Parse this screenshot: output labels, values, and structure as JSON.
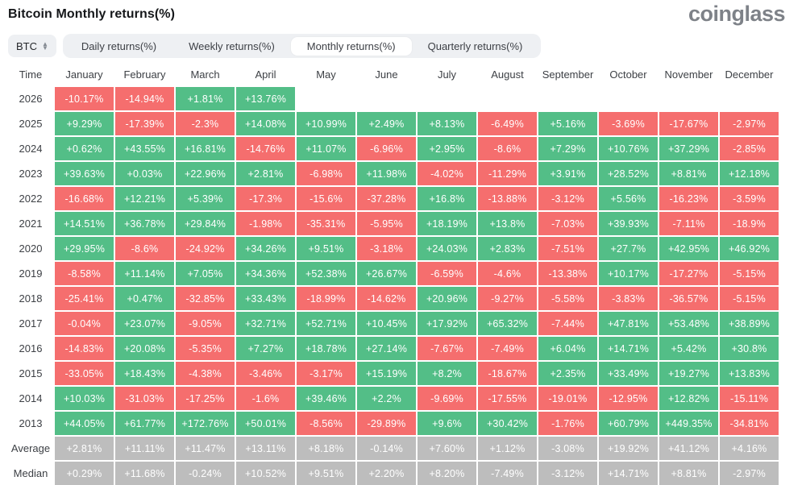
{
  "header": {
    "title": "Bitcoin Monthly returns(%)",
    "logo": "coinglass"
  },
  "toolbar": {
    "symbol_selector": {
      "value": "BTC"
    },
    "tabs": [
      {
        "label": "Daily returns(%)",
        "active": false
      },
      {
        "label": "Weekly returns(%)",
        "active": false
      },
      {
        "label": "Monthly returns(%)",
        "active": true
      },
      {
        "label": "Quarterly returns(%)",
        "active": false
      }
    ]
  },
  "colors": {
    "positive": "#53be87",
    "negative": "#f56e6e",
    "summary": "#bdbdbd",
    "cell_text": "#ffffff"
  },
  "table": {
    "columns": [
      "Time",
      "January",
      "February",
      "March",
      "April",
      "May",
      "June",
      "July",
      "August",
      "September",
      "October",
      "November",
      "December"
    ],
    "rows": [
      {
        "label": "2026",
        "summary": false,
        "values": [
          "-10.17%",
          "-14.94%",
          "+1.81%",
          "+13.76%",
          null,
          null,
          null,
          null,
          null,
          null,
          null,
          null
        ]
      },
      {
        "label": "2025",
        "summary": false,
        "values": [
          "+9.29%",
          "-17.39%",
          "-2.3%",
          "+14.08%",
          "+10.99%",
          "+2.49%",
          "+8.13%",
          "-6.49%",
          "+5.16%",
          "-3.69%",
          "-17.67%",
          "-2.97%"
        ]
      },
      {
        "label": "2024",
        "summary": false,
        "values": [
          "+0.62%",
          "+43.55%",
          "+16.81%",
          "-14.76%",
          "+11.07%",
          "-6.96%",
          "+2.95%",
          "-8.6%",
          "+7.29%",
          "+10.76%",
          "+37.29%",
          "-2.85%"
        ]
      },
      {
        "label": "2023",
        "summary": false,
        "values": [
          "+39.63%",
          "+0.03%",
          "+22.96%",
          "+2.81%",
          "-6.98%",
          "+11.98%",
          "-4.02%",
          "-11.29%",
          "+3.91%",
          "+28.52%",
          "+8.81%",
          "+12.18%"
        ]
      },
      {
        "label": "2022",
        "summary": false,
        "values": [
          "-16.68%",
          "+12.21%",
          "+5.39%",
          "-17.3%",
          "-15.6%",
          "-37.28%",
          "+16.8%",
          "-13.88%",
          "-3.12%",
          "+5.56%",
          "-16.23%",
          "-3.59%"
        ]
      },
      {
        "label": "2021",
        "summary": false,
        "values": [
          "+14.51%",
          "+36.78%",
          "+29.84%",
          "-1.98%",
          "-35.31%",
          "-5.95%",
          "+18.19%",
          "+13.8%",
          "-7.03%",
          "+39.93%",
          "-7.11%",
          "-18.9%"
        ]
      },
      {
        "label": "2020",
        "summary": false,
        "values": [
          "+29.95%",
          "-8.6%",
          "-24.92%",
          "+34.26%",
          "+9.51%",
          "-3.18%",
          "+24.03%",
          "+2.83%",
          "-7.51%",
          "+27.7%",
          "+42.95%",
          "+46.92%"
        ]
      },
      {
        "label": "2019",
        "summary": false,
        "values": [
          "-8.58%",
          "+11.14%",
          "+7.05%",
          "+34.36%",
          "+52.38%",
          "+26.67%",
          "-6.59%",
          "-4.6%",
          "-13.38%",
          "+10.17%",
          "-17.27%",
          "-5.15%"
        ]
      },
      {
        "label": "2018",
        "summary": false,
        "values": [
          "-25.41%",
          "+0.47%",
          "-32.85%",
          "+33.43%",
          "-18.99%",
          "-14.62%",
          "+20.96%",
          "-9.27%",
          "-5.58%",
          "-3.83%",
          "-36.57%",
          "-5.15%"
        ]
      },
      {
        "label": "2017",
        "summary": false,
        "values": [
          "-0.04%",
          "+23.07%",
          "-9.05%",
          "+32.71%",
          "+52.71%",
          "+10.45%",
          "+17.92%",
          "+65.32%",
          "-7.44%",
          "+47.81%",
          "+53.48%",
          "+38.89%"
        ]
      },
      {
        "label": "2016",
        "summary": false,
        "values": [
          "-14.83%",
          "+20.08%",
          "-5.35%",
          "+7.27%",
          "+18.78%",
          "+27.14%",
          "-7.67%",
          "-7.49%",
          "+6.04%",
          "+14.71%",
          "+5.42%",
          "+30.8%"
        ]
      },
      {
        "label": "2015",
        "summary": false,
        "values": [
          "-33.05%",
          "+18.43%",
          "-4.38%",
          "-3.46%",
          "-3.17%",
          "+15.19%",
          "+8.2%",
          "-18.67%",
          "+2.35%",
          "+33.49%",
          "+19.27%",
          "+13.83%"
        ]
      },
      {
        "label": "2014",
        "summary": false,
        "values": [
          "+10.03%",
          "-31.03%",
          "-17.25%",
          "-1.6%",
          "+39.46%",
          "+2.2%",
          "-9.69%",
          "-17.55%",
          "-19.01%",
          "-12.95%",
          "+12.82%",
          "-15.11%"
        ]
      },
      {
        "label": "2013",
        "summary": false,
        "values": [
          "+44.05%",
          "+61.77%",
          "+172.76%",
          "+50.01%",
          "-8.56%",
          "-29.89%",
          "+9.6%",
          "+30.42%",
          "-1.76%",
          "+60.79%",
          "+449.35%",
          "-34.81%"
        ]
      },
      {
        "label": "Average",
        "summary": true,
        "values": [
          "+2.81%",
          "+11.11%",
          "+11.47%",
          "+13.11%",
          "+8.18%",
          "-0.14%",
          "+7.60%",
          "+1.12%",
          "-3.08%",
          "+19.92%",
          "+41.12%",
          "+4.16%"
        ]
      },
      {
        "label": "Median",
        "summary": true,
        "values": [
          "+0.29%",
          "+11.68%",
          "-0.24%",
          "+10.52%",
          "+9.51%",
          "+2.20%",
          "+8.20%",
          "-7.49%",
          "-3.12%",
          "+14.71%",
          "+8.81%",
          "-2.97%"
        ]
      }
    ]
  }
}
